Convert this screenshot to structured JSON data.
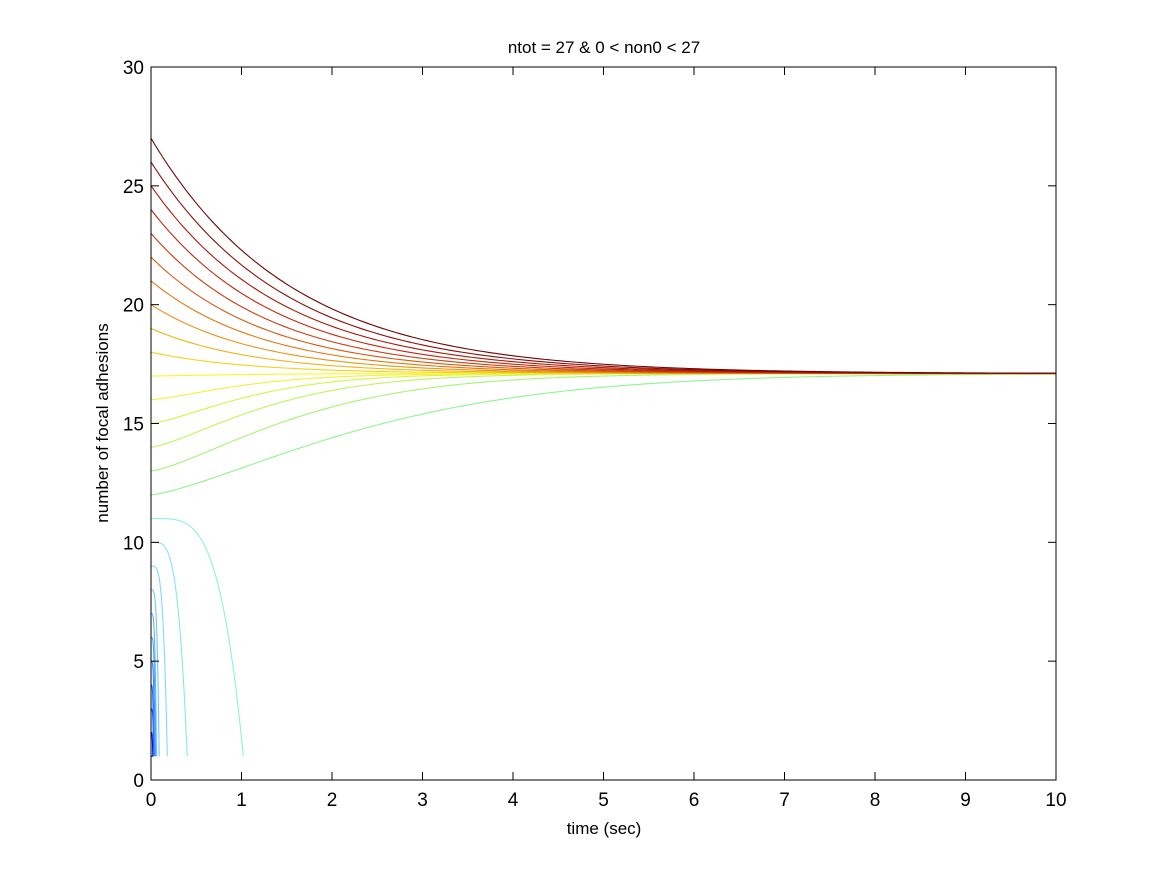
{
  "chart_data": {
    "type": "line",
    "title": "ntot = 27  &  0 < non0 < 27",
    "xlabel": "time (sec)",
    "ylabel": "number of focal adhesions",
    "xlim": [
      0,
      10
    ],
    "ylim": [
      0,
      30
    ],
    "xticks": [
      0,
      1,
      2,
      3,
      4,
      5,
      6,
      7,
      8,
      9,
      10
    ],
    "yticks": [
      0,
      5,
      10,
      15,
      20,
      25,
      30
    ],
    "grid": false,
    "legend": "none",
    "colormap": "jet",
    "steady_state": 17.1,
    "series": [
      {
        "start": 1,
        "collapse_time": 0.02,
        "color": "#0000b5"
      },
      {
        "start": 2,
        "collapse_time": 0.02,
        "color": "#0005ff"
      },
      {
        "start": 3,
        "collapse_time": 0.03,
        "color": "#0f4fff"
      },
      {
        "start": 4,
        "collapse_time": 0.03,
        "color": "#1e6cff"
      },
      {
        "start": 5,
        "collapse_time": 0.04,
        "color": "#3d8cff"
      },
      {
        "start": 6,
        "collapse_time": 0.05,
        "color": "#4aa0ff"
      },
      {
        "start": 7,
        "collapse_time": 0.06,
        "color": "#5fb4ff"
      },
      {
        "start": 8,
        "collapse_time": 0.09,
        "color": "#70c8ff"
      },
      {
        "start": 9,
        "collapse_time": 0.18,
        "color": "#7fd8ff"
      },
      {
        "start": 10,
        "collapse_time": 0.4,
        "color": "#86e6f0"
      },
      {
        "start": 11,
        "collapse_time": 1.02,
        "color": "#90f0e0"
      },
      {
        "start": 12,
        "steady": 17.1,
        "tau": 2.8,
        "color": "#8ff58f"
      },
      {
        "start": 13,
        "steady": 17.1,
        "tau": 1.9,
        "color": "#a6f570"
      },
      {
        "start": 14,
        "steady": 17.1,
        "tau": 1.5,
        "color": "#bff55a"
      },
      {
        "start": 15,
        "steady": 17.1,
        "tau": 1.3,
        "color": "#d6f545"
      },
      {
        "start": 16,
        "steady": 17.1,
        "tau": 1.2,
        "color": "#ecf535"
      },
      {
        "start": 17,
        "steady": 17.1,
        "tau": 1.1,
        "color": "#fafa1e"
      },
      {
        "start": 18,
        "steady": 17.1,
        "tau": 1.1,
        "color": "#f5d21a"
      },
      {
        "start": 19,
        "steady": 17.1,
        "tau": 1.15,
        "color": "#f0b418"
      },
      {
        "start": 20,
        "steady": 17.1,
        "tau": 1.2,
        "color": "#e69614"
      },
      {
        "start": 21,
        "steady": 17.1,
        "tau": 1.25,
        "color": "#e07812"
      },
      {
        "start": 22,
        "steady": 17.1,
        "tau": 1.3,
        "color": "#d65a10"
      },
      {
        "start": 23,
        "steady": 17.1,
        "tau": 1.35,
        "color": "#cc3c0e"
      },
      {
        "start": 24,
        "steady": 17.1,
        "tau": 1.4,
        "color": "#c0280c"
      },
      {
        "start": 25,
        "steady": 17.1,
        "tau": 1.45,
        "color": "#aa1a0a"
      },
      {
        "start": 26,
        "steady": 17.1,
        "tau": 1.5,
        "color": "#8c0e08"
      },
      {
        "start": 27,
        "steady": 17.1,
        "tau": 1.55,
        "color": "#6e0505"
      }
    ]
  }
}
